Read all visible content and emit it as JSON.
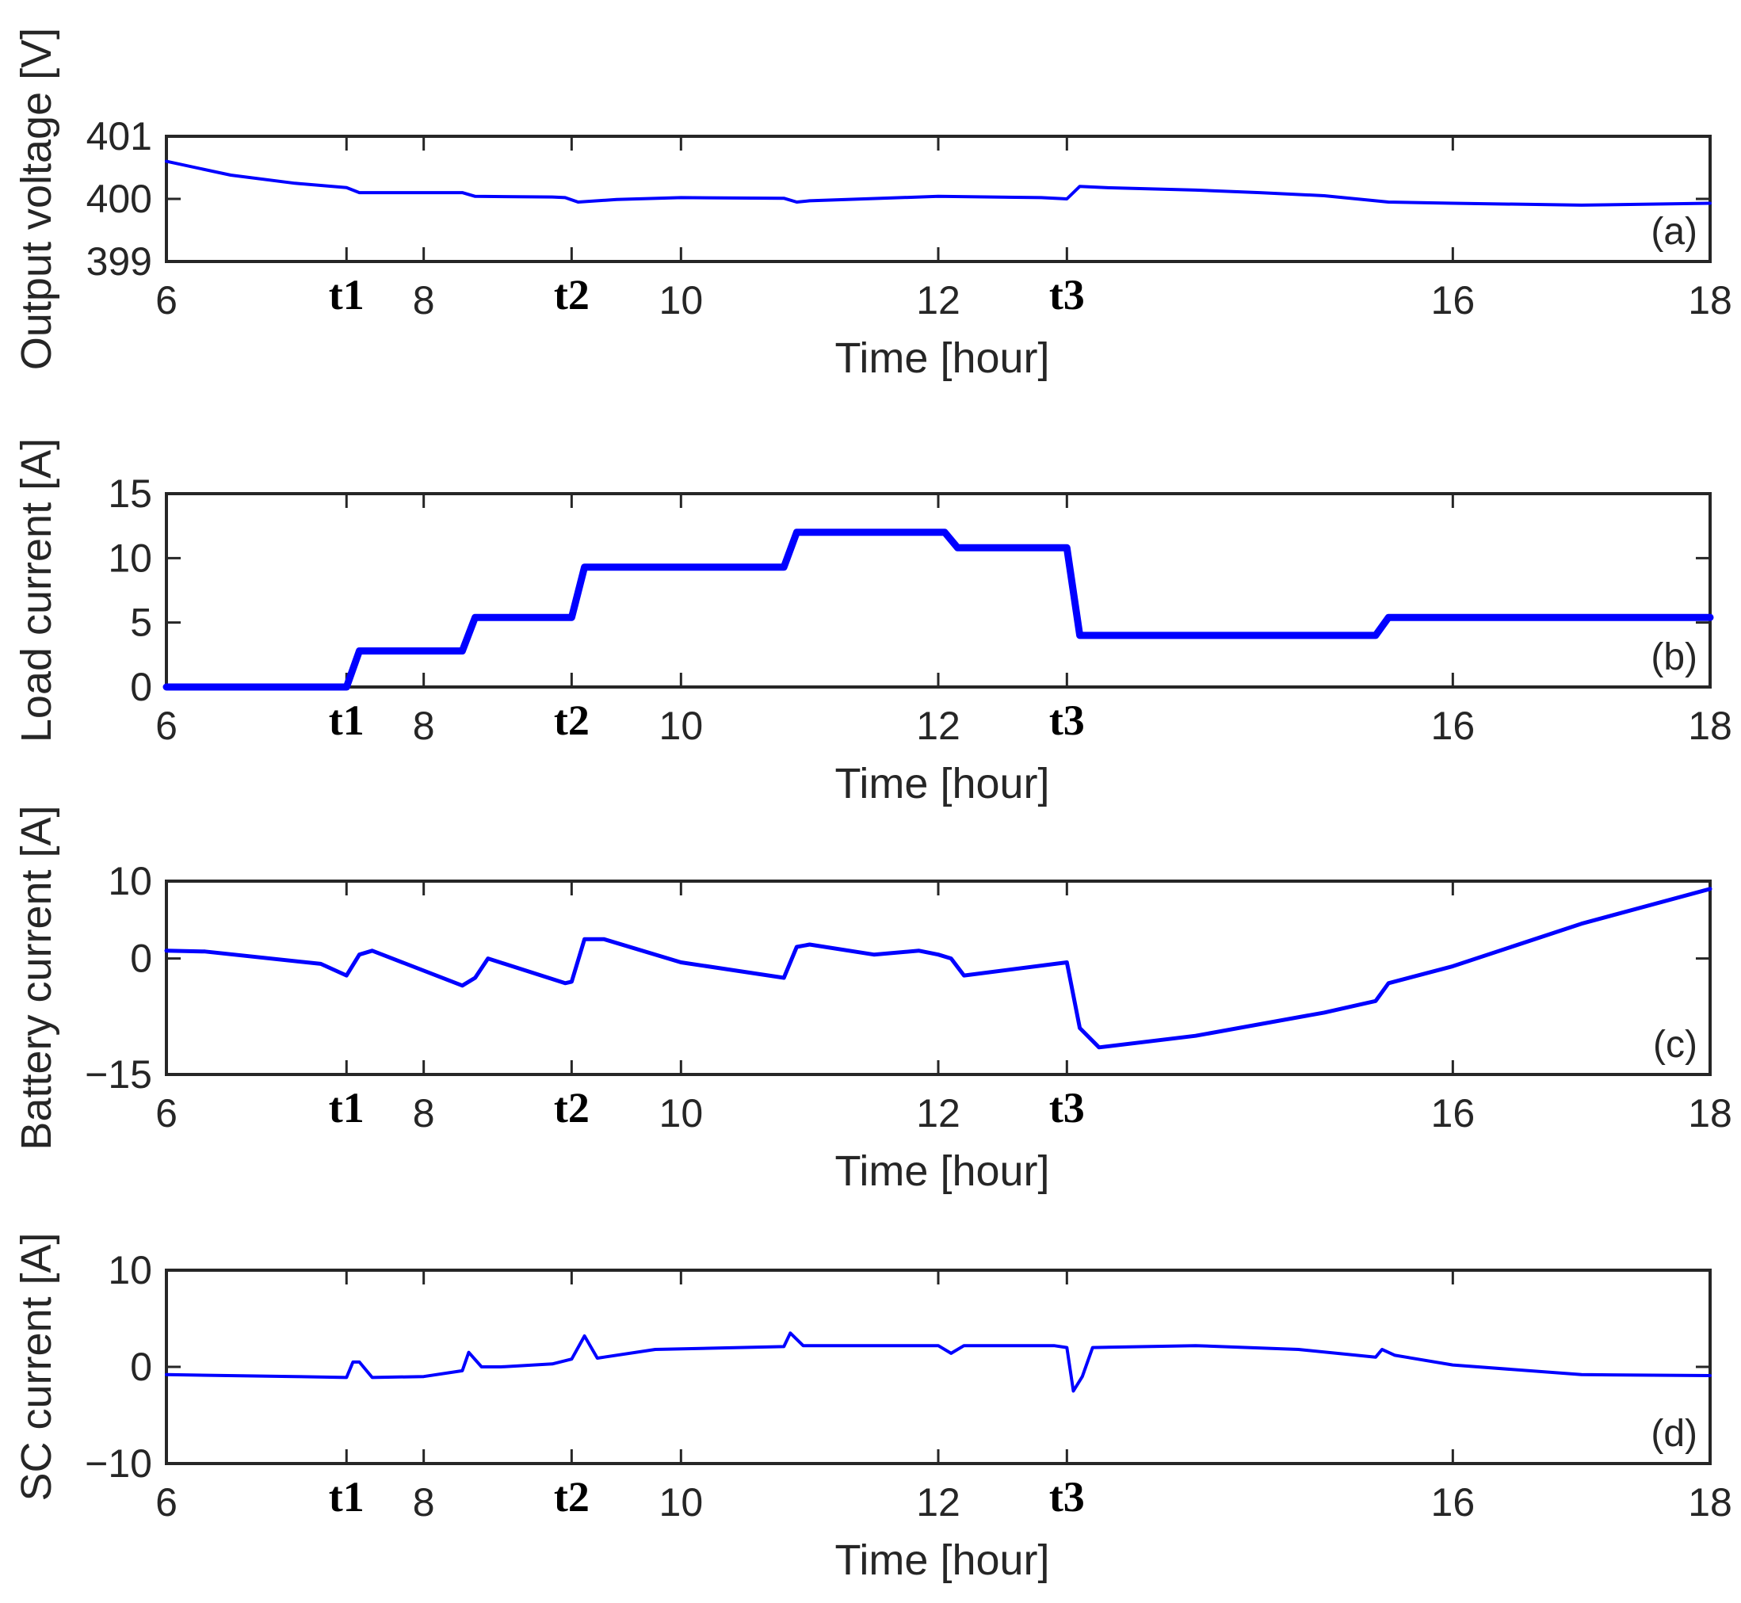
{
  "chart_data": [
    {
      "type": "line",
      "panel_label": "(a)",
      "xlabel": "Time [hour]",
      "ylabel": "Output voltage [V]",
      "xlim": [
        6,
        18
      ],
      "ylim": [
        399,
        401
      ],
      "xticks": [
        6,
        8,
        10,
        12,
        16,
        18
      ],
      "yticks": [
        399,
        400,
        401
      ],
      "markers": [
        {
          "label": "t1",
          "x": 7.4
        },
        {
          "label": "t2",
          "x": 9.15
        },
        {
          "label": "t3",
          "x": 13.0
        }
      ],
      "series": [
        {
          "name": "Output voltage",
          "x": [
            6,
            6.5,
            7,
            7.4,
            7.5,
            8,
            8.3,
            8.4,
            9,
            9.1,
            9.2,
            9.5,
            10,
            10.8,
            10.9,
            11,
            12,
            12.8,
            13.0,
            13.1,
            13.3,
            14,
            14.5,
            15,
            15.5,
            16,
            17,
            18
          ],
          "y": [
            400.6,
            400.38,
            400.25,
            400.18,
            400.1,
            400.1,
            400.1,
            400.04,
            400.03,
            400.02,
            399.95,
            399.99,
            400.02,
            400.01,
            399.95,
            399.97,
            400.04,
            400.02,
            400.0,
            400.2,
            400.18,
            400.14,
            400.1,
            400.05,
            399.95,
            399.93,
            399.9,
            399.93
          ]
        }
      ]
    },
    {
      "type": "line",
      "panel_label": "(b)",
      "xlabel": "Time [hour]",
      "ylabel": "Load current [A]",
      "xlim": [
        6,
        18
      ],
      "ylim": [
        0,
        15
      ],
      "xticks": [
        6,
        8,
        10,
        12,
        16,
        18
      ],
      "yticks": [
        0,
        5,
        10,
        15
      ],
      "markers": [
        {
          "label": "t1",
          "x": 7.4
        },
        {
          "label": "t2",
          "x": 9.15
        },
        {
          "label": "t3",
          "x": 13.0
        }
      ],
      "series": [
        {
          "name": "Load current",
          "x": [
            6,
            7.4,
            7.5,
            8.3,
            8.4,
            9.15,
            9.25,
            10.8,
            10.9,
            12.05,
            12.15,
            13.0,
            13.1,
            15.4,
            15.5,
            18
          ],
          "y": [
            0,
            0,
            2.8,
            2.8,
            5.4,
            5.4,
            9.3,
            9.3,
            12.0,
            12.0,
            10.8,
            10.8,
            4.0,
            4.0,
            5.4,
            5.4
          ]
        }
      ]
    },
    {
      "type": "line",
      "panel_label": "(c)",
      "xlabel": "Time [hour]",
      "ylabel": "Battery current [A]",
      "xlim": [
        6,
        18
      ],
      "ylim": [
        -15,
        10
      ],
      "xticks": [
        6,
        8,
        10,
        12,
        16,
        18
      ],
      "yticks": [
        -15,
        0,
        10
      ],
      "markers": [
        {
          "label": "t1",
          "x": 7.4
        },
        {
          "label": "t2",
          "x": 9.15
        },
        {
          "label": "t3",
          "x": 13.0
        }
      ],
      "series": [
        {
          "name": "Battery current",
          "x": [
            6,
            6.3,
            7.2,
            7.4,
            7.5,
            7.6,
            8.3,
            8.4,
            8.5,
            9.1,
            9.15,
            9.25,
            9.4,
            10,
            10.8,
            10.9,
            11,
            11.5,
            11.85,
            12.0,
            12.1,
            12.2,
            13.0,
            13.1,
            13.25,
            14,
            15,
            15.4,
            15.5,
            16,
            17,
            18
          ],
          "y": [
            1,
            0.9,
            -0.7,
            -2.2,
            0.5,
            1.0,
            -3.5,
            -2.5,
            0,
            -3.2,
            -3.0,
            2.5,
            2.5,
            -0.5,
            -2.5,
            1.5,
            1.8,
            0.5,
            1.0,
            0.5,
            0,
            -2.2,
            -0.5,
            -9.0,
            -11.5,
            -10.0,
            -7.0,
            -5.5,
            -3.2,
            -1.0,
            4.5,
            9.0
          ]
        }
      ]
    },
    {
      "type": "line",
      "panel_label": "(d)",
      "xlabel": "Time [hour]",
      "ylabel": "SC current [A]",
      "xlim": [
        6,
        18
      ],
      "ylim": [
        -10,
        10
      ],
      "xticks": [
        6,
        8,
        10,
        12,
        16,
        18
      ],
      "yticks": [
        -10,
        0,
        10
      ],
      "markers": [
        {
          "label": "t1",
          "x": 7.4
        },
        {
          "label": "t2",
          "x": 9.15
        },
        {
          "label": "t3",
          "x": 13.0
        }
      ],
      "series": [
        {
          "name": "SC current",
          "x": [
            6,
            7,
            7.4,
            7.45,
            7.5,
            7.6,
            8,
            8.3,
            8.35,
            8.45,
            8.6,
            9.0,
            9.15,
            9.25,
            9.35,
            9.8,
            10.8,
            10.85,
            10.95,
            11.05,
            12.0,
            12.1,
            12.2,
            12.9,
            13.0,
            13.05,
            13.12,
            13.2,
            14,
            14.8,
            15.4,
            15.45,
            15.55,
            16,
            17,
            18
          ],
          "y": [
            -0.8,
            -1.0,
            -1.1,
            0.5,
            0.5,
            -1.1,
            -1.0,
            -0.4,
            1.5,
            0,
            0,
            0.3,
            0.8,
            3.2,
            0.9,
            1.8,
            2.1,
            3.5,
            2.2,
            2.2,
            2.2,
            1.4,
            2.2,
            2.2,
            2.0,
            -2.5,
            -1.0,
            2.0,
            2.2,
            1.8,
            1.0,
            1.8,
            1.2,
            0.2,
            -0.8,
            -0.9
          ]
        }
      ]
    }
  ]
}
